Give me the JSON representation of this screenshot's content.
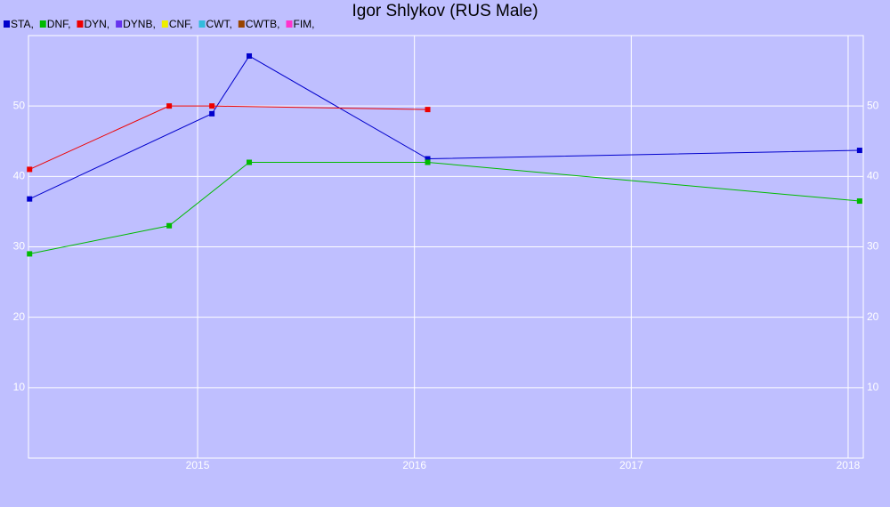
{
  "chart_data": {
    "type": "line",
    "title": "Igor Shlykov (RUS Male)",
    "xlim": [
      2014.22,
      2018.07
    ],
    "xticks": [
      2015,
      2016,
      2017,
      2018
    ],
    "ylim": [
      0,
      60
    ],
    "yticks": [
      10,
      20,
      30,
      40,
      50
    ],
    "grid": true,
    "series": [
      {
        "name": "STA,",
        "color": "#0000cc",
        "x": [
          2014.225,
          2015.066,
          2015.238,
          2016.061,
          2018.053
        ],
        "values": [
          36.8,
          48.9,
          57.1,
          42.5,
          43.7
        ]
      },
      {
        "name": "DNF,",
        "color": "#00bb00",
        "x": [
          2014.225,
          2014.869,
          2015.238,
          2016.061,
          2018.053
        ],
        "values": [
          29.0,
          33.0,
          42.0,
          42.0,
          36.5
        ]
      },
      {
        "name": "DYN,",
        "color": "#ee0000",
        "x": [
          2014.225,
          2014.869,
          2015.066,
          2016.061
        ],
        "values": [
          41.0,
          50.0,
          50.0,
          49.5
        ]
      },
      {
        "name": "DYNB,",
        "color": "#6633ee",
        "x": [],
        "values": []
      },
      {
        "name": "CNF,",
        "color": "#eeee00",
        "x": [],
        "values": []
      },
      {
        "name": "CWT,",
        "color": "#33bbdd",
        "x": [],
        "values": []
      },
      {
        "name": "CWTB,",
        "color": "#994400",
        "x": [],
        "values": []
      },
      {
        "name": "FIM,",
        "color": "#ff33cc",
        "x": [],
        "values": []
      }
    ]
  }
}
